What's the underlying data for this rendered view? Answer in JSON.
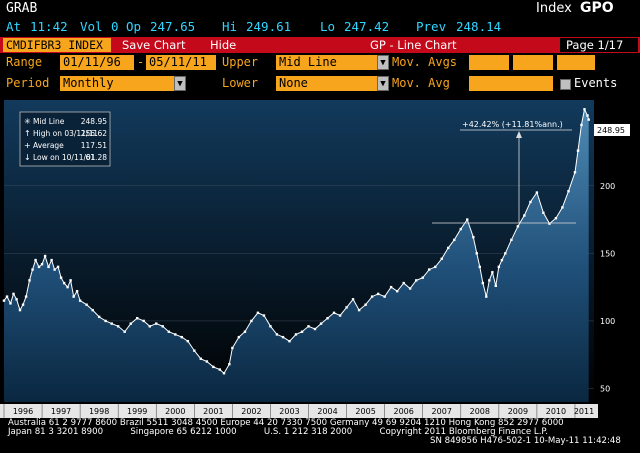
{
  "header": {
    "grab": "GRAB",
    "security_type": "Index",
    "function": "GPO",
    "quote": {
      "at_label": "At",
      "time": "11:42",
      "vol_label": "Vol",
      "vol": "0",
      "op_label": "Op",
      "op": "247.65",
      "hi_label": "Hi",
      "hi": "249.61",
      "lo_label": "Lo",
      "lo": "247.42",
      "prev_label": "Prev",
      "prev": "248.14"
    }
  },
  "toolbar": {
    "ticker": "CMDIFBR3 INDEX",
    "save_chart": "Save Chart",
    "hide": "Hide",
    "title": "GP - Line Chart",
    "page": "Page 1/17"
  },
  "controls": {
    "range_label": "Range",
    "range_start": "01/11/96",
    "range_sep": "-",
    "range_end": "05/11/11",
    "upper_label": "Upper",
    "upper_value": "Mid Line",
    "mov_avgs_label": "Mov. Avgs",
    "period_label": "Period",
    "period_value": "Monthly",
    "lower_label": "Lower",
    "lower_value": "None",
    "mov_avg_label": "Mov. Avg",
    "events_label": "Events"
  },
  "legend": {
    "mid_line": "Mid Line",
    "mid_line_val": "248.95",
    "high": "High on 03/11/11",
    "high_val": "256.62",
    "average": "Average",
    "average_val": "117.51",
    "low": "Low on 10/11/01",
    "low_val": "61.28"
  },
  "annotation": "+42.42% (+11.81%ann.)",
  "last_value_tag": "248.95",
  "colors": {
    "accent_orange": "#f7a51c",
    "toolbar_red": "#c4091a",
    "quote_cyan": "#2fd6ff",
    "area_top": "#4e8ab5"
  },
  "chart_data": {
    "type": "area",
    "x_ticks": [
      "1996",
      "1997",
      "1998",
      "1999",
      "2000",
      "2001",
      "2002",
      "2003",
      "2004",
      "2005",
      "2006",
      "2007",
      "2008",
      "2009",
      "2010",
      "2011"
    ],
    "y_ticks": [
      50,
      100,
      150,
      200
    ],
    "ylim": [
      40,
      262
    ],
    "xlim": [
      1996.0,
      2011.5
    ],
    "series": [
      {
        "x": [
          1996.0,
          1996.08,
          1996.17,
          1996.25,
          1996.33,
          1996.42,
          1996.5,
          1996.58,
          1996.67,
          1996.75,
          1996.83,
          1996.92,
          1997.0,
          1997.08,
          1997.17,
          1997.25,
          1997.33,
          1997.42,
          1997.5,
          1997.58,
          1997.67,
          1997.75,
          1997.83,
          1997.92,
          1998.0,
          1998.17,
          1998.33,
          1998.5,
          1998.67,
          1998.83,
          1999.0,
          1999.17,
          1999.33,
          1999.5,
          1999.67,
          1999.83,
          2000.0,
          2000.17,
          2000.33,
          2000.5,
          2000.67,
          2000.83,
          2001.0,
          2001.17,
          2001.33,
          2001.5,
          2001.67,
          2001.78,
          2001.92,
          2002.0,
          2002.17,
          2002.33,
          2002.5,
          2002.67,
          2002.83,
          2003.0,
          2003.17,
          2003.33,
          2003.5,
          2003.67,
          2003.83,
          2004.0,
          2004.17,
          2004.33,
          2004.5,
          2004.67,
          2004.83,
          2005.0,
          2005.17,
          2005.33,
          2005.5,
          2005.67,
          2005.83,
          2006.0,
          2006.17,
          2006.33,
          2006.5,
          2006.67,
          2006.83,
          2007.0,
          2007.17,
          2007.33,
          2007.5,
          2007.67,
          2007.83,
          2008.0,
          2008.17,
          2008.33,
          2008.42,
          2008.5,
          2008.58,
          2008.67,
          2008.75,
          2008.83,
          2008.92,
          2009.0,
          2009.08,
          2009.17,
          2009.33,
          2009.5,
          2009.67,
          2009.83,
          2010.0,
          2010.17,
          2010.33,
          2010.5,
          2010.67,
          2010.83,
          2011.0,
          2011.08,
          2011.17,
          2011.25,
          2011.33,
          2011.36
        ],
        "y": [
          115,
          118,
          113,
          120,
          116,
          108,
          112,
          118,
          130,
          138,
          145,
          140,
          142,
          148,
          140,
          145,
          138,
          140,
          132,
          128,
          125,
          130,
          118,
          122,
          115,
          112,
          108,
          103,
          100,
          98,
          96,
          92,
          98,
          102,
          100,
          96,
          98,
          96,
          92,
          90,
          88,
          85,
          78,
          72,
          70,
          66,
          64,
          61.3,
          68,
          80,
          88,
          92,
          100,
          106,
          104,
          96,
          90,
          88,
          85,
          90,
          92,
          96,
          94,
          98,
          102,
          106,
          104,
          110,
          116,
          108,
          112,
          118,
          120,
          118,
          125,
          122,
          128,
          124,
          130,
          132,
          138,
          140,
          146,
          154,
          160,
          168,
          175,
          162,
          150,
          140,
          128,
          118,
          130,
          136,
          126,
          140,
          145,
          150,
          160,
          170,
          178,
          188,
          195,
          180,
          172,
          176,
          184,
          196,
          210,
          226,
          245,
          256.6,
          252,
          248.95
        ]
      }
    ]
  },
  "footer": {
    "line1": "Australia 61 2 9777 8600 Brazil 5511 3048 4500 Europe 44 20 7330 7500 Germany 49 69 9204 1210 Hong Kong 852 2977 6000",
    "line2": "Japan 81 3 3201 8900          Singapore 65 6212 1000          U.S. 1 212 318 2000          Copyright 2011 Bloomberg Finance L.P.",
    "line3": "SN 849856 H476-502-1 10-May-11 11:42:48"
  }
}
